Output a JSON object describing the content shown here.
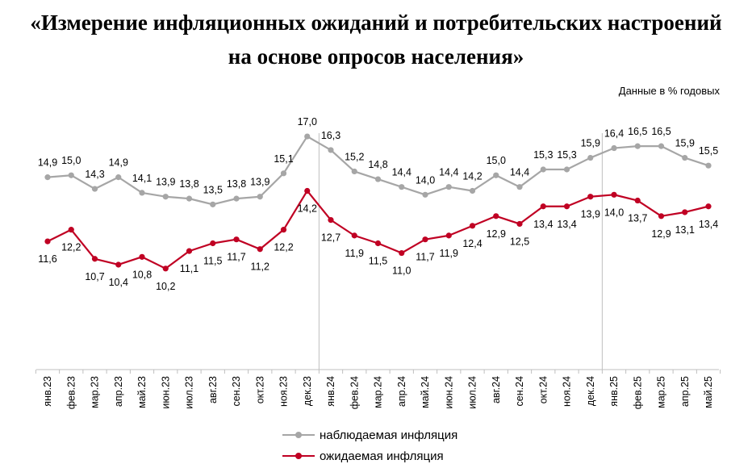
{
  "header": {
    "title_line1": "«Измерение инфляционных ожиданий и потребительских настроений",
    "title_line2": "на основе опросов населения»",
    "units_note": "Данные в % годовых"
  },
  "chart_data": {
    "type": "line",
    "title": "«Измерение инфляционных ожиданий и потребительских настроений на основе опросов населения»",
    "ylabel": "Данные в % годовых",
    "xlabel": "",
    "ylim": [
      5.0,
      18.0
    ],
    "grid": false,
    "legend_position": "bottom",
    "categories": [
      "янв.23",
      "фев.23",
      "мар.23",
      "апр.23",
      "май.23",
      "июн.23",
      "июл.23",
      "авг.23",
      "сен.23",
      "окт.23",
      "ноя.23",
      "дек.23",
      "янв.24",
      "фев.24",
      "мар.24",
      "апр.24",
      "май.24",
      "июн.24",
      "июл.24",
      "авг.24",
      "сен.24",
      "окт.24",
      "ноя.24",
      "дек.24",
      "янв.25",
      "фев.25",
      "мар.25",
      "апр.25",
      "май.25"
    ],
    "series": [
      {
        "name": "наблюдаемая инфляция",
        "color": "#a6a6a6",
        "values": [
          14.9,
          15.0,
          14.3,
          14.9,
          14.1,
          13.9,
          13.8,
          13.5,
          13.8,
          13.9,
          15.1,
          17.0,
          16.3,
          15.2,
          14.8,
          14.4,
          14.0,
          14.4,
          14.2,
          15.0,
          14.4,
          15.3,
          15.3,
          15.9,
          16.4,
          16.5,
          16.5,
          15.9,
          15.5
        ],
        "labels": [
          "14,9",
          "15,0",
          "14,3",
          "14,9",
          "14,1",
          "13,9",
          "13,8",
          "13,5",
          "13,8",
          "13,9",
          "15,1",
          "17,0",
          "16,3",
          "15,2",
          "14,8",
          "14,4",
          "14,0",
          "14,4",
          "14,2",
          "15,0",
          "14,4",
          "15,3",
          "15,3",
          "15,9",
          "16,4",
          "16,5",
          "16,5",
          "15,9",
          "15,5"
        ]
      },
      {
        "name": "ожидаемая инфляция",
        "color": "#c00023",
        "values": [
          11.6,
          12.2,
          10.7,
          10.4,
          10.8,
          10.2,
          11.1,
          11.5,
          11.7,
          11.2,
          12.2,
          14.2,
          12.7,
          11.9,
          11.5,
          11.0,
          11.7,
          11.9,
          12.4,
          12.9,
          12.5,
          13.4,
          13.4,
          13.9,
          14.0,
          13.7,
          12.9,
          13.1,
          13.4
        ],
        "labels": [
          "11,6",
          "12,2",
          "10,7",
          "10,4",
          "10,8",
          "10,2",
          "11,1",
          "11,5",
          "11,7",
          "11,2",
          "12,2",
          "14,2",
          "12,7",
          "11,9",
          "11,5",
          "11,0",
          "11,7",
          "11,9",
          "12,4",
          "12,9",
          "12,5",
          "13,4",
          "13,4",
          "13,9",
          "14,0",
          "13,7",
          "12,9",
          "13,1",
          "13,4"
        ]
      }
    ],
    "year_separators_after": [
      "дек.23",
      "дек.24"
    ]
  },
  "legend": {
    "observed": "наблюдаемая инфляция",
    "expected": "ожидаемая инфляция"
  },
  "colors": {
    "observed": "#a6a6a6",
    "expected": "#c00023",
    "separator": "#bfbfbf",
    "axis": "#bfbfbf"
  }
}
